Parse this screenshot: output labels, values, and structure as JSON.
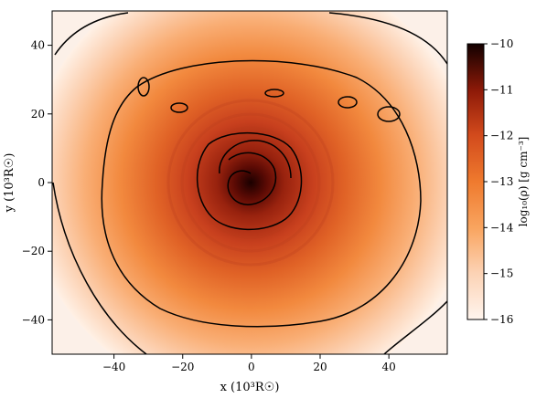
{
  "chart_data": {
    "type": "heatmap",
    "title": "",
    "xlabel": "x (10³R☉)",
    "ylabel": "y (10³R☉)",
    "xlim": [
      -58,
      57
    ],
    "ylim": [
      -50,
      50
    ],
    "xticks": [
      -40,
      -20,
      0,
      20,
      40
    ],
    "yticks": [
      -40,
      -20,
      0,
      20,
      40
    ],
    "colorbar": {
      "label": "log₁₀(ρ) [g cm⁻³]",
      "range": [
        -16,
        -10
      ],
      "ticks": [
        -16,
        -15,
        -14,
        -13,
        -12,
        -11,
        -10
      ]
    },
    "contours": [
      {
        "level_log_rho": -12.5,
        "shape": "inner spiral core",
        "approx_radius": [
          5,
          12
        ]
      },
      {
        "level_log_rho": -13.5,
        "shape": "irregular ring",
        "approx_radius": [
          30,
          42
        ]
      },
      {
        "level_log_rho": -15,
        "shape": "outer arcs near edges",
        "approx_radius": [
          50,
          70
        ]
      }
    ],
    "colormap": "white-orange-red-black",
    "colors": {
      "low": "#fff5ee",
      "mid": "#f08030",
      "high": "#1a0000"
    }
  }
}
